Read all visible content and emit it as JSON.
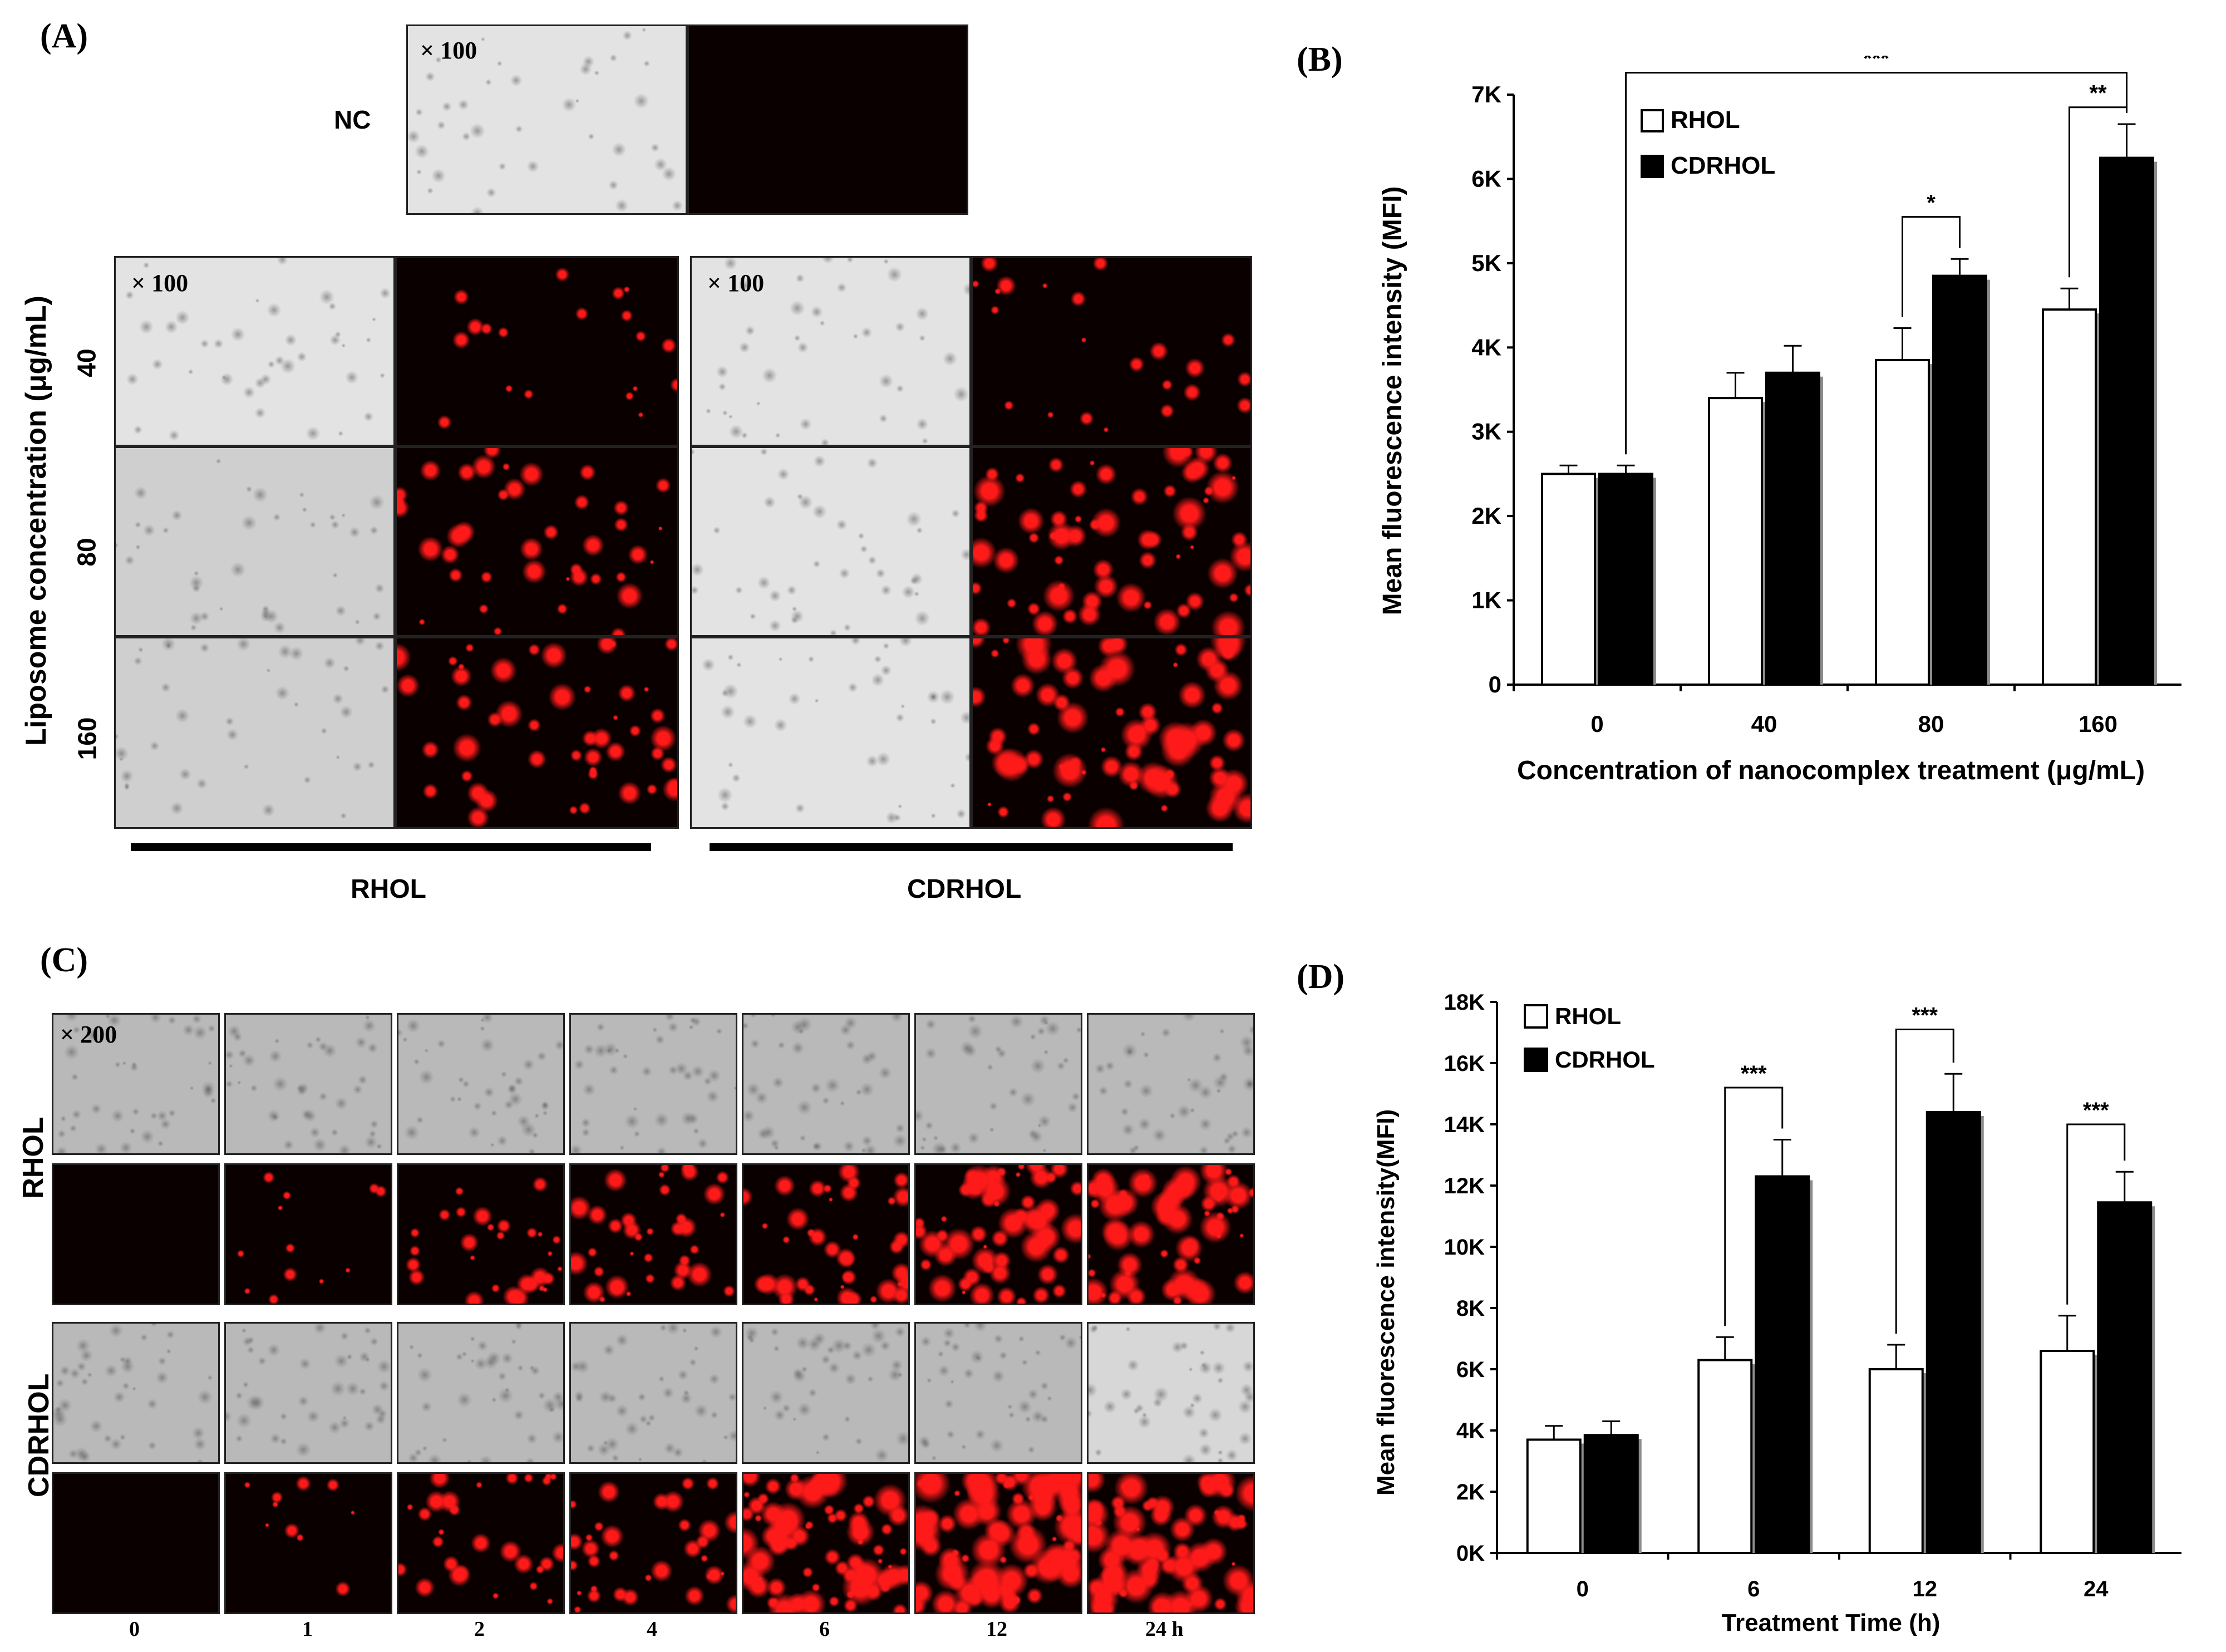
{
  "panels": {
    "a_label": "(A)",
    "b_label": "(B)",
    "c_label": "(C)",
    "d_label": "(D)"
  },
  "panel_a": {
    "nc_label": "NC",
    "magnification": "× 100",
    "y_axis_label": "Liposome concentration (μg/mL)",
    "concentrations": [
      "40",
      "80",
      "160"
    ],
    "group_labels": [
      "RHOL",
      "CDRHOL"
    ],
    "colors": {
      "fluorescence": "#ff1a1a",
      "background": "#0a0000"
    }
  },
  "panel_c": {
    "magnification": "× 200",
    "row_labels": [
      "RHOL",
      "CDRHOL"
    ],
    "time_labels": [
      "0",
      "1",
      "2",
      "4",
      "6",
      "12",
      "24 h"
    ]
  },
  "chart_data": [
    {
      "type": "bar",
      "categories": [
        "0",
        "40",
        "80",
        "160"
      ],
      "series": [
        {
          "name": "RHOL",
          "values": [
            2500,
            3400,
            3850,
            4450
          ],
          "errors": [
            100,
            300,
            380,
            250
          ],
          "color": "#ffffff"
        },
        {
          "name": "CDRHOL",
          "values": [
            2500,
            3700,
            4850,
            6250
          ],
          "errors": [
            100,
            320,
            200,
            400
          ],
          "color": "#000000"
        }
      ],
      "xlabel": "Concentration of nanocomplex treatment (μg/mL)",
      "ylabel": "Mean fluorescence intensity (MFI)",
      "ylim": [
        0,
        7000
      ],
      "yticks": [
        "0",
        "1K",
        "2K",
        "3K",
        "4K",
        "5K",
        "6K",
        "7K"
      ],
      "legend": "top-left",
      "significance": [
        {
          "label": "***",
          "from": "0 CDRHOL",
          "to": "160 CDRHOL"
        },
        {
          "label": "*",
          "from": "80 RHOL",
          "to": "80 CDRHOL"
        },
        {
          "label": "**",
          "from": "160 RHOL",
          "to": "160 CDRHOL"
        }
      ]
    },
    {
      "type": "bar",
      "categories": [
        "0",
        "6",
        "12",
        "24"
      ],
      "series": [
        {
          "name": "RHOL",
          "values": [
            3700,
            6300,
            6000,
            6600
          ],
          "errors": [
            450,
            750,
            800,
            1150
          ],
          "color": "#ffffff"
        },
        {
          "name": "CDRHOL",
          "values": [
            3850,
            12300,
            14400,
            11450
          ],
          "errors": [
            450,
            1200,
            1250,
            1000
          ],
          "color": "#000000"
        }
      ],
      "xlabel": "Treatment Time (h)",
      "ylabel": "Mean fluorescence intensity(MFI)",
      "ylim": [
        0,
        18000
      ],
      "yticks": [
        "0K",
        "2K",
        "4K",
        "6K",
        "8K",
        "10K",
        "12K",
        "14K",
        "16K",
        "18K"
      ],
      "legend": "top-left",
      "significance": [
        {
          "label": "***",
          "from": "6 RHOL",
          "to": "6 CDRHOL"
        },
        {
          "label": "***",
          "from": "12 RHOL",
          "to": "12 CDRHOL"
        },
        {
          "label": "***",
          "from": "24 RHOL",
          "to": "24 CDRHOL"
        }
      ]
    }
  ]
}
